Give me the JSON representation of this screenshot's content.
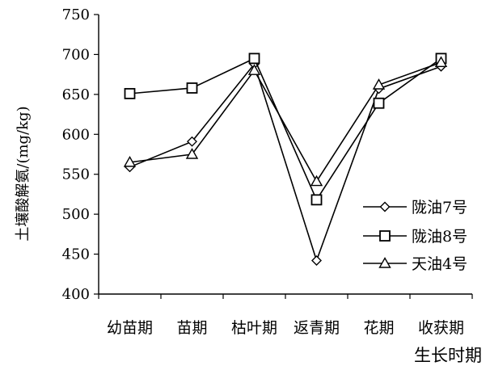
{
  "chart_data": {
    "type": "line",
    "title": "",
    "xlabel": "生长时期",
    "ylabel": "土壤酸解氨/(mg/kg)",
    "categories": [
      "幼苗期",
      "苗期",
      "枯叶期",
      "返青期",
      "花期",
      "收获期"
    ],
    "ylim": [
      400,
      750
    ],
    "yticks": [
      400,
      450,
      500,
      550,
      600,
      650,
      700,
      750
    ],
    "grid": false,
    "legend_position": "right",
    "series": [
      {
        "name": "陇油7号",
        "marker": "diamond",
        "values": [
          559,
          591,
          688,
          442,
          657,
          685
        ]
      },
      {
        "name": "陇油8号",
        "marker": "square",
        "values": [
          651,
          658,
          695,
          518,
          639,
          695
        ]
      },
      {
        "name": "天油4号",
        "marker": "triangle",
        "values": [
          565,
          575,
          680,
          541,
          662,
          690
        ]
      }
    ],
    "colors": {
      "line": "#000000",
      "background": "#ffffff"
    }
  }
}
